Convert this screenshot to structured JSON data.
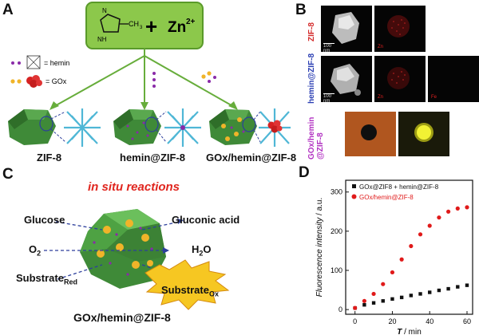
{
  "panels": {
    "A": "A",
    "B": "B",
    "C": "C",
    "D": "D"
  },
  "panelA": {
    "reactant_top": "CH",
    "reactant_sub": "3",
    "plus": "+",
    "zn": "Zn",
    "zn_sup": "2+",
    "n_label": "N",
    "nh_label": "NH",
    "legend_hemin": "= hemin",
    "legend_gox": "= GOx",
    "products": [
      "ZIF-8",
      "hemin@ZIF-8",
      "GOx/hemin@ZIF-8"
    ],
    "colors": {
      "box": "#8cc84b",
      "box_border": "#5a9a2a",
      "crystal": "#3f8a38",
      "framework": "#4fb7d6",
      "arrow": "#67ad3b"
    }
  },
  "panelB": {
    "row_labels": [
      "ZIF-8",
      "hemin@ZIF-8",
      "GOx/hemin\n@ZIF-8"
    ],
    "row_label_colors": [
      "#d42b2b",
      "#2b3fb3",
      "#b232c2"
    ],
    "scale_bar": "100 nm",
    "elements": [
      "Zn",
      "Zn",
      "Fe"
    ]
  },
  "panelC": {
    "title": "in situ reactions",
    "left": [
      "Glucose",
      "O",
      "Substrate"
    ],
    "o2_sub": "2",
    "substrate_sub_left": "Red",
    "right": [
      "Gluconic acid",
      "H",
      "Substrate"
    ],
    "h2o_sub": "2",
    "h2o_o": "O",
    "substrate_sub_right": "Ox",
    "caption": "GOx/hemin@ZIF-8"
  },
  "chart_data": {
    "type": "scatter",
    "xlabel_var": "T",
    "xlabel_unit": " / min",
    "ylabel_var": "Fluorescence intensity",
    "ylabel_unit": " / a.u.",
    "xlim": [
      -5,
      63
    ],
    "ylim": [
      -12,
      330
    ],
    "xticks": [
      0,
      20,
      40,
      60
    ],
    "yticks": [
      0,
      100,
      200,
      300
    ],
    "series": [
      {
        "name": "GOx@ZIF8 + hemin@ZIF-8",
        "color": "#111111",
        "marker": "square",
        "x": [
          0,
          5,
          10,
          15,
          20,
          25,
          30,
          35,
          40,
          45,
          50,
          55,
          60
        ],
        "y": [
          4,
          12,
          17,
          22,
          27,
          31,
          36,
          40,
          44,
          49,
          53,
          58,
          62
        ]
      },
      {
        "name": "GOx/hemin@ZIF-8",
        "color": "#e01a1a",
        "marker": "circle",
        "x": [
          0,
          5,
          10,
          15,
          20,
          25,
          30,
          35,
          40,
          45,
          50,
          55,
          60
        ],
        "y": [
          4,
          22,
          40,
          65,
          95,
          128,
          162,
          192,
          214,
          235,
          250,
          258,
          261
        ]
      }
    ]
  }
}
